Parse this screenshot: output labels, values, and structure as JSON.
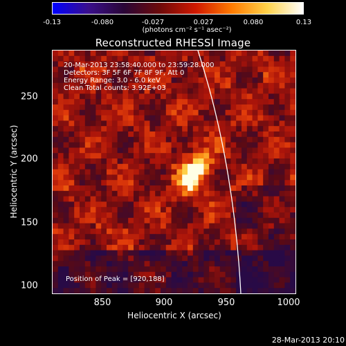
{
  "colorbar": {
    "ticks": [
      "-0.13",
      "-0.080",
      "-0.027",
      "0.027",
      "0.080",
      "0.13"
    ],
    "units": "(photons cm⁻² s⁻¹ asec⁻²)",
    "gradient": [
      "#0000ff",
      "#3a0f8c",
      "#2a0636",
      "#6e0a0a",
      "#d01800",
      "#ff7a00",
      "#ffd24a",
      "#ffffff"
    ]
  },
  "title": "Reconstructed RHESSI Image",
  "annotations": {
    "time_range": "20-Mar-2013 23:58:40.000 to 23:59:28.000",
    "detectors": "Detectors: 3F 5F 6F 7F 8F 9F, Att 0",
    "energy": "Energy Range: 3.0 - 6.0 keV",
    "method": "Clean     Total counts: 3.92E+03",
    "peak": "Position of Peak = [920,188]"
  },
  "axes": {
    "xlabel": "Heliocentric X (arcsec)",
    "ylabel": "Heliocentric Y (arcsec)",
    "x_ticks": [
      "850",
      "900",
      "950",
      "1000"
    ],
    "y_ticks": [
      "250",
      "200",
      "150",
      "100"
    ],
    "xlim": [
      812,
      1000
    ],
    "ylim": [
      93,
      280
    ]
  },
  "footer": "28-Mar-2013 20:10"
}
